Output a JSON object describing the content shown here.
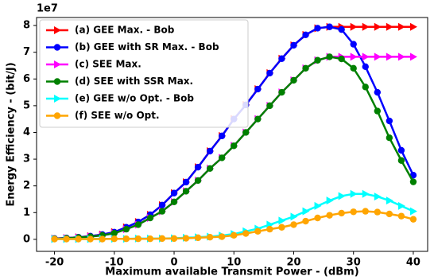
{
  "chart_data": {
    "type": "line",
    "x_label": "Maximum available Transmit Power - (dBm)",
    "y_label": "Energy Efficiency - (bit/J)",
    "y_offset_label": "1e7",
    "x": [
      -20,
      -18,
      -16,
      -14,
      -12,
      -10,
      -8,
      -6,
      -4,
      -2,
      0,
      2,
      4,
      6,
      8,
      10,
      12,
      14,
      16,
      18,
      20,
      22,
      24,
      26,
      28,
      30,
      32,
      34,
      36,
      38,
      40
    ],
    "xlim": [
      -23,
      42.4
    ],
    "ylim": [
      -0.45,
      8.3
    ],
    "xticks": [
      -20,
      -10,
      0,
      10,
      20,
      30,
      40
    ],
    "yticks": [
      0,
      1,
      2,
      3,
      4,
      5,
      6,
      7,
      8
    ],
    "legend": "upper left",
    "series": [
      {
        "name": "(a) GEE Max. - Bob",
        "color": "#ff0000",
        "marker": "triangle",
        "values": [
          0.03,
          0.05,
          0.08,
          0.12,
          0.18,
          0.27,
          0.45,
          0.65,
          0.92,
          1.28,
          1.73,
          2.14,
          2.7,
          3.3,
          3.87,
          4.5,
          5.03,
          5.62,
          6.22,
          6.76,
          7.26,
          7.65,
          7.9,
          7.95,
          7.95,
          7.95,
          7.95,
          7.95,
          7.95,
          7.95,
          7.95
        ]
      },
      {
        "name": "(b) GEE with SR Max. - Bob",
        "color": "#0000ff",
        "marker": "circle",
        "values": [
          0.03,
          0.05,
          0.08,
          0.12,
          0.18,
          0.27,
          0.45,
          0.65,
          0.92,
          1.28,
          1.73,
          2.14,
          2.7,
          3.3,
          3.87,
          4.5,
          5.03,
          5.62,
          6.22,
          6.76,
          7.26,
          7.65,
          7.9,
          7.95,
          7.85,
          7.3,
          6.46,
          5.5,
          4.43,
          3.33,
          2.4
        ]
      },
      {
        "name": "(c) SEE Max.",
        "color": "#ff00ff",
        "marker": "triangle",
        "values": [
          0.02,
          0.04,
          0.07,
          0.1,
          0.15,
          0.23,
          0.38,
          0.55,
          0.8,
          1.05,
          1.4,
          1.8,
          2.2,
          2.65,
          3.05,
          3.5,
          4.0,
          4.5,
          5.0,
          5.5,
          5.95,
          6.4,
          6.7,
          6.83,
          6.83,
          6.83,
          6.83,
          6.83,
          6.83,
          6.83,
          6.83
        ]
      },
      {
        "name": "(d) SEE with SSR Max.",
        "color": "#008000",
        "marker": "circle",
        "values": [
          0.02,
          0.04,
          0.07,
          0.1,
          0.15,
          0.23,
          0.38,
          0.55,
          0.8,
          1.05,
          1.4,
          1.8,
          2.2,
          2.65,
          3.05,
          3.5,
          4.0,
          4.5,
          5.0,
          5.5,
          5.95,
          6.4,
          6.7,
          6.83,
          6.75,
          6.4,
          5.7,
          4.8,
          3.8,
          2.95,
          2.15
        ]
      },
      {
        "name": "(e) GEE w/o Opt. - Bob",
        "color": "#00ffff",
        "marker": "triangle",
        "values": [
          0.01,
          0.01,
          0.01,
          0.01,
          0.02,
          0.02,
          0.02,
          0.03,
          0.03,
          0.03,
          0.04,
          0.06,
          0.08,
          0.1,
          0.14,
          0.2,
          0.3,
          0.4,
          0.55,
          0.7,
          0.85,
          1.05,
          1.25,
          1.45,
          1.62,
          1.7,
          1.7,
          1.6,
          1.45,
          1.25,
          1.05
        ]
      },
      {
        "name": "(f) SEE w/o Opt.",
        "color": "#ffa500",
        "marker": "circle",
        "values": [
          0.01,
          0.01,
          0.01,
          0.01,
          0.01,
          0.02,
          0.02,
          0.02,
          0.02,
          0.03,
          0.03,
          0.04,
          0.06,
          0.08,
          0.1,
          0.15,
          0.22,
          0.3,
          0.38,
          0.45,
          0.55,
          0.68,
          0.8,
          0.9,
          0.98,
          1.03,
          1.05,
          1.02,
          0.95,
          0.87,
          0.75
        ]
      }
    ]
  }
}
